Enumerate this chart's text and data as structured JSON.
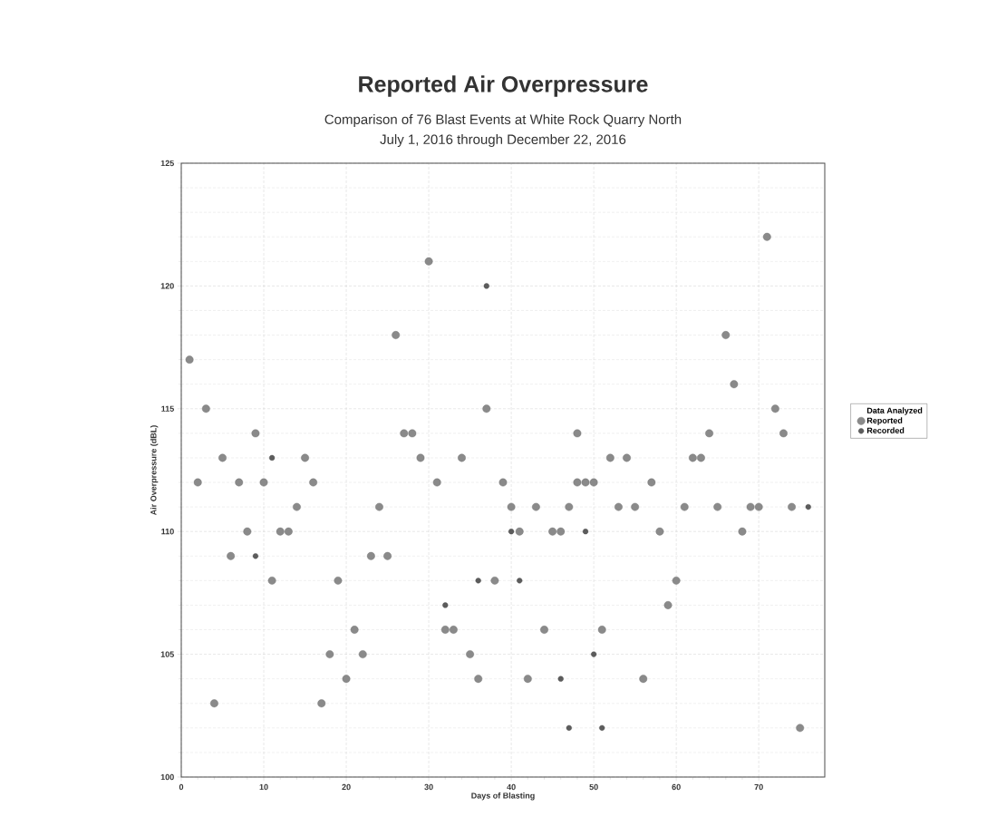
{
  "chart_data": {
    "type": "scatter",
    "title": "Reported Air Overpressure",
    "subtitle": "Comparison of 76 Blast Events at White Rock Quarry North",
    "annotations": [
      "July 1, 2016 through December 22, 2016"
    ],
    "xlabel": "Days of Blasting",
    "ylabel": "Air Overpressure (dBL)",
    "legend_title": "Data Analyzed",
    "xlim": [
      0,
      78
    ],
    "xticks": [
      0,
      10,
      20,
      30,
      40,
      50,
      60,
      70
    ],
    "ylim": [
      100,
      125
    ],
    "yticks": [
      100,
      105,
      110,
      115,
      120,
      125
    ],
    "grid": true,
    "legend": "right",
    "marker": "circle",
    "series": [
      {
        "name": "Reported",
        "color": "#8a8a8a",
        "x": [
          1,
          2,
          3,
          4,
          5,
          6,
          7,
          8,
          9,
          10,
          11,
          12,
          13,
          14,
          15,
          16,
          17,
          18,
          19,
          20,
          21,
          22,
          23,
          24,
          25,
          26,
          27,
          28,
          29,
          30,
          31,
          32,
          33,
          34,
          35,
          36,
          37,
          38,
          39,
          40,
          41,
          42,
          43,
          44,
          45,
          46,
          47,
          48,
          48,
          49,
          50,
          51,
          52,
          53,
          54,
          55,
          56,
          57,
          58,
          59,
          60,
          61,
          62,
          63,
          64,
          65,
          66,
          67,
          68,
          69,
          70,
          71,
          72,
          73,
          74,
          75
        ],
        "values": [
          117,
          112,
          115,
          103,
          113,
          109,
          112,
          110,
          114,
          112,
          108,
          110,
          110,
          111,
          113,
          112,
          103,
          105,
          108,
          104,
          106,
          105,
          109,
          111,
          109,
          118,
          114,
          114,
          113,
          121,
          112,
          106,
          106,
          113,
          105,
          104,
          115,
          108,
          112,
          111,
          110,
          104,
          111,
          106,
          110,
          110,
          111,
          114,
          112,
          112,
          112,
          106,
          113,
          111,
          113,
          111,
          104,
          112,
          110,
          107,
          108,
          111,
          113,
          113,
          114,
          111,
          118,
          116,
          110,
          111,
          111,
          122,
          115,
          114,
          111,
          102
        ]
      },
      {
        "name": "Recorded",
        "color": "#5c5c5c",
        "x": [
          9,
          11,
          32,
          36,
          37,
          40,
          41,
          46,
          47,
          49,
          50,
          51,
          76
        ],
        "values": [
          109,
          113,
          107,
          108,
          120,
          110,
          108,
          104,
          102,
          110,
          105,
          102,
          111
        ]
      }
    ]
  }
}
